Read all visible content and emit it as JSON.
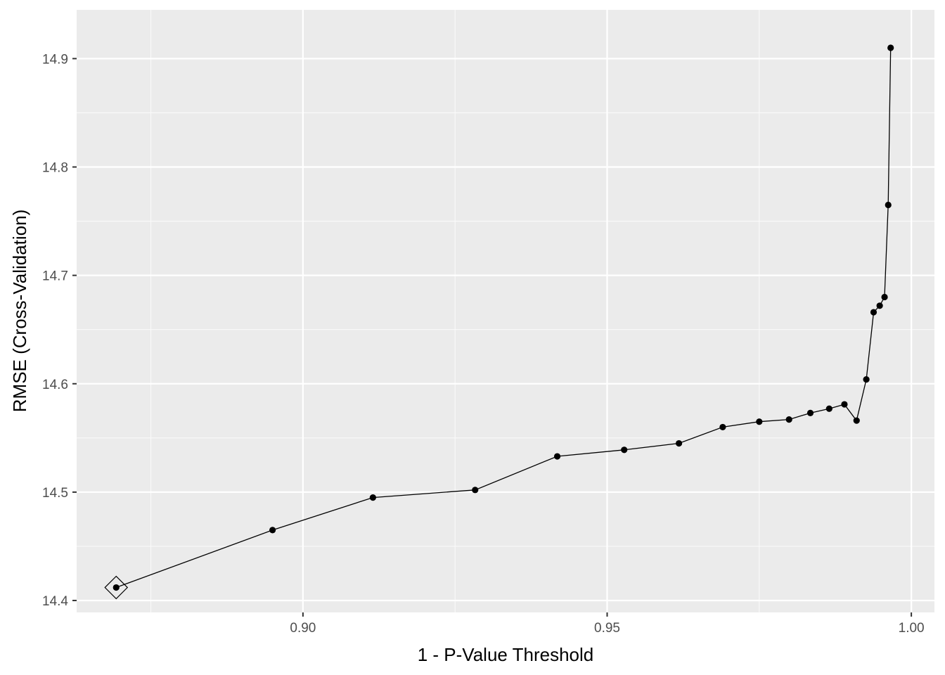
{
  "chart_data": {
    "type": "line",
    "title": "",
    "xlabel": "1 - P-Value Threshold",
    "ylabel": "RMSE (Cross-Validation)",
    "xlim": [
      0.8628,
      1.0038
    ],
    "ylim": [
      14.389,
      14.945
    ],
    "x_ticks": [
      0.9,
      0.95,
      1.0
    ],
    "x_tick_labels": [
      "0.90",
      "0.95",
      "1.00"
    ],
    "y_ticks": [
      14.4,
      14.5,
      14.6,
      14.7,
      14.8,
      14.9
    ],
    "y_tick_labels": [
      "14.4",
      "14.5",
      "14.6",
      "14.7",
      "14.8",
      "14.9"
    ],
    "grid": true,
    "series": [
      {
        "x": [
          0.8693,
          0.895,
          0.9115,
          0.9283,
          0.9418,
          0.9528,
          0.9618,
          0.969,
          0.975,
          0.9799,
          0.9834,
          0.9865,
          0.989,
          0.991,
          0.9926,
          0.9938,
          0.9948,
          0.9956,
          0.9962,
          0.9966
        ],
        "y": [
          14.412,
          14.465,
          14.495,
          14.502,
          14.533,
          14.539,
          14.545,
          14.56,
          14.565,
          14.567,
          14.573,
          14.577,
          14.581,
          14.566,
          14.604,
          14.666,
          14.672,
          14.68,
          14.765,
          14.91
        ]
      }
    ],
    "highlight": {
      "x": 0.8693,
      "y": 14.412,
      "marker": "diamond"
    }
  }
}
